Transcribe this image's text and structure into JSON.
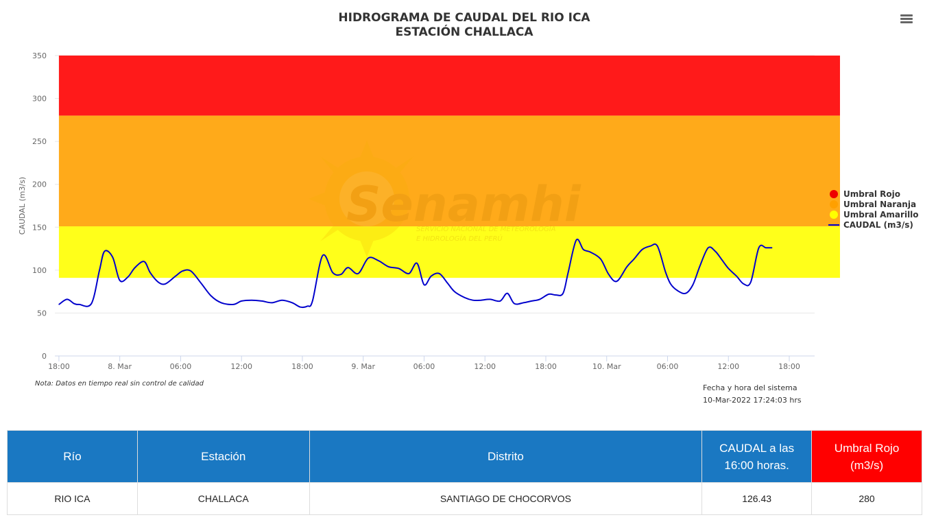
{
  "chart_data": {
    "type": "line",
    "title": "HIDROGRAMA DE CAUDAL DEL RIO ICA",
    "subtitle": "ESTACIÓN CHALLACA",
    "ylabel": "CAUDAL (m3/s)",
    "xlabel": "",
    "ylim": [
      0,
      350
    ],
    "yticks": [
      0,
      50,
      100,
      150,
      200,
      250,
      300,
      350
    ],
    "x_range_hours": [
      -0.4,
      74.5
    ],
    "xticks": [
      {
        "h": 0,
        "label": "18:00"
      },
      {
        "h": 6,
        "label": "8. Mar"
      },
      {
        "h": 12,
        "label": "06:00"
      },
      {
        "h": 18,
        "label": "12:00"
      },
      {
        "h": 24,
        "label": "18:00"
      },
      {
        "h": 30,
        "label": "9. Mar"
      },
      {
        "h": 36,
        "label": "06:00"
      },
      {
        "h": 42,
        "label": "12:00"
      },
      {
        "h": 48,
        "label": "18:00"
      },
      {
        "h": 54,
        "label": "10. Mar"
      },
      {
        "h": 60,
        "label": "06:00"
      },
      {
        "h": 66,
        "label": "12:00"
      },
      {
        "h": 72,
        "label": "18:00"
      }
    ],
    "grid": true,
    "legend_position": "right",
    "bands": [
      {
        "name": "Umbral Rojo",
        "from": 280,
        "to": 350,
        "color": "#ff1a1a",
        "legend_color": "#ee0000"
      },
      {
        "name": "Umbral Naranja",
        "from": 151,
        "to": 280,
        "color": "#ffaa1a",
        "legend_color": "#ffa000"
      },
      {
        "name": "Umbral Amarillo",
        "from": 91,
        "to": 151,
        "color": "#ffff1a",
        "legend_color": "#ffff00"
      }
    ],
    "band_x_range_hours": [
      0,
      77
    ],
    "series": [
      {
        "name": "CAUDAL (m3/s)",
        "color": "#0000cc",
        "x_hours": [
          0,
          0.8,
          1.5,
          2,
          3.2,
          4,
          4.5,
          5.3,
          6,
          6.8,
          7.5,
          8.4,
          9,
          9.8,
          10.5,
          11.5,
          12.2,
          13,
          14,
          15,
          16,
          17.2,
          18,
          19,
          20,
          21,
          22,
          23,
          23.8,
          24.5,
          25,
          26,
          27,
          27.8,
          28.5,
          29.5,
          30.5,
          31.5,
          32.5,
          33.5,
          34.5,
          35.3,
          36,
          36.7,
          37.5,
          38.3,
          39,
          40,
          40.8,
          41.6,
          42.5,
          43.5,
          44.2,
          44.9,
          45.8,
          46.6,
          47.4,
          48.3,
          49,
          49.7,
          50.2,
          51,
          51.7,
          52.4,
          53.4,
          54.2,
          55,
          56,
          56.7,
          57.5,
          58.3,
          59,
          59.8,
          60.3,
          61,
          61.8,
          62.5,
          63.2,
          64,
          64.7,
          65.3,
          66,
          66.8,
          67.5,
          68.2,
          69,
          69.7,
          70.3
        ],
        "values": [
          60,
          66,
          61,
          60,
          61,
          100,
          122,
          115,
          88,
          92,
          103,
          110,
          97,
          86,
          84,
          93,
          99,
          99,
          85,
          70,
          62,
          60,
          64,
          65,
          64,
          62,
          65,
          62,
          57,
          58,
          64,
          117,
          97,
          95,
          103,
          96,
          114,
          111,
          104,
          102,
          96,
          108,
          83,
          93,
          96,
          85,
          75,
          68,
          65,
          65,
          66,
          64,
          73,
          61,
          62,
          64,
          66,
          72,
          71,
          73,
          97,
          135,
          124,
          121,
          113,
          95,
          87,
          104,
          113,
          124,
          128,
          128,
          98,
          84,
          76,
          73,
          83,
          105,
          126,
          122,
          113,
          102,
          93,
          84,
          86,
          126,
          126,
          126
        ]
      }
    ]
  },
  "notes": {
    "data_note": "Nota: Datos en tiempo real sin control de calidad",
    "system_date_label": "Fecha y hora del sistema",
    "system_date_value": "10-Mar-2022 17:24:03 hrs"
  },
  "watermark": {
    "brand": "Senamhi",
    "line1": "SERVICIO NACIONAL DE METEOROLOGÍA",
    "line2": "E HIDROLOGÍA DEL PERÚ"
  },
  "menu": {
    "icon": "hamburger-menu-icon"
  },
  "table": {
    "headers": {
      "rio": "Río",
      "estacion": "Estación",
      "distrito": "Distrito",
      "caudal_line1": "CAUDAL a las",
      "caudal_line2": "16:00 horas.",
      "umbral_line1": "Umbral Rojo",
      "umbral_line2": "(m3/s)"
    },
    "colors": {
      "header_blue": "#1a78c2",
      "header_red": "#ff0000"
    },
    "row": {
      "rio": "RIO ICA",
      "estacion": "CHALLACA",
      "distrito": "SANTIAGO DE CHOCORVOS",
      "caudal": "126.43",
      "umbral": "280"
    }
  }
}
